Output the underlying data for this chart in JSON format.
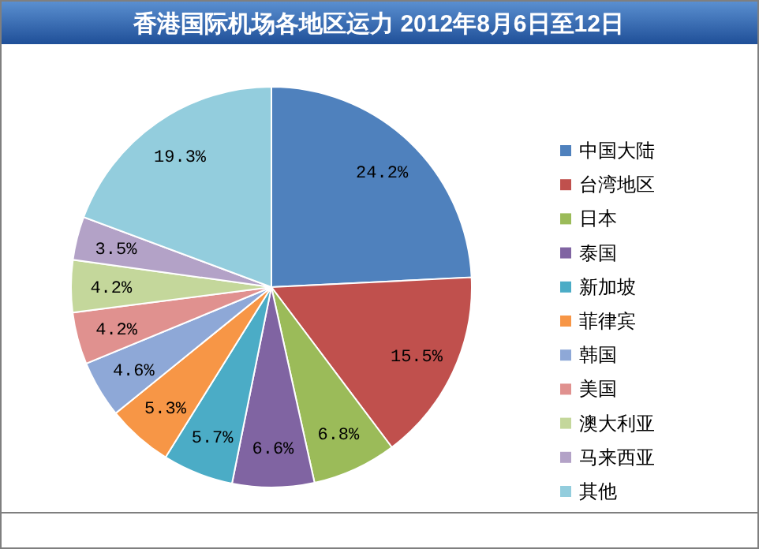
{
  "chart_data": {
    "type": "pie",
    "title": "香港国际机场各地区运力 2012年8月6日至12日",
    "categories": [
      "中国大陆",
      "台湾地区",
      "日本",
      "泰国",
      "新加坡",
      "菲律宾",
      "韩国",
      "美国",
      "澳大利亚",
      "马来西亚",
      "其他"
    ],
    "values": [
      24.2,
      15.5,
      6.8,
      6.6,
      5.7,
      5.3,
      4.6,
      4.2,
      4.2,
      3.5,
      19.3
    ],
    "colors": [
      "#4f81bd",
      "#c0504d",
      "#9bbb59",
      "#8064a2",
      "#4bacc6",
      "#f79646",
      "#8ea8d7",
      "#e0918f",
      "#c4d79b",
      "#b3a2c7",
      "#93cddd"
    ],
    "value_labels": [
      "24.2%",
      "15.5%",
      "6.8%",
      "6.6%",
      "5.7%",
      "5.3%",
      "4.6%",
      "4.2%",
      "4.2%",
      "3.5%",
      "19.3%"
    ],
    "legend": "right"
  }
}
